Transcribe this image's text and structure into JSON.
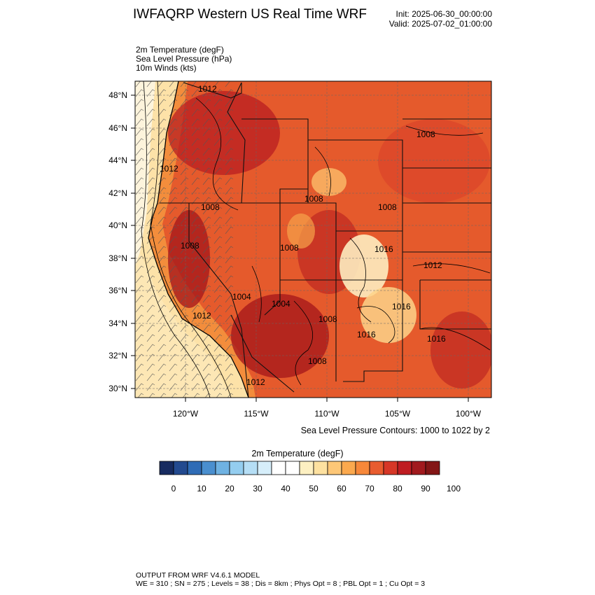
{
  "header": {
    "title": "IWFAQRP Western US Real Time WRF",
    "init": "Init: 2025-06-30_00:00:00",
    "valid": "Valid: 2025-07-02_01:00:00"
  },
  "fields": [
    "2m Temperature   (degF)",
    "Sea Level Pressure   (hPa)",
    "10m Winds   (kts)"
  ],
  "map": {
    "lat_labels": [
      "48°N",
      "46°N",
      "44°N",
      "42°N",
      "40°N",
      "38°N",
      "36°N",
      "34°N",
      "32°N",
      "30°N"
    ],
    "lon_labels": [
      "120°W",
      "115°W",
      "110°W",
      "105°W",
      "100°W"
    ],
    "pressure_labels": [
      "1012",
      "1012",
      "1012",
      "1012",
      "1008",
      "1008",
      "1008",
      "1008",
      "1008",
      "1012",
      "1016",
      "1016",
      "1016",
      "1008",
      "1004",
      "1008",
      "1008",
      "1004",
      "1016"
    ],
    "contour_note": "Sea Level Pressure Contours: 1000 to 1022 by 2"
  },
  "colorbar": {
    "title": "2m Temperature  (degF)",
    "ticks": [
      "0",
      "10",
      "20",
      "30",
      "40",
      "50",
      "60",
      "70",
      "80",
      "90",
      "100"
    ],
    "colors": [
      "#172b60",
      "#234a8f",
      "#2f6cb6",
      "#4a8fcf",
      "#6fb2e2",
      "#94cdef",
      "#b5def5",
      "#d6eefa",
      "#ffffff",
      "#ffffff",
      "#fdf0c2",
      "#fde1a0",
      "#fdc777",
      "#fba94e",
      "#f7883a",
      "#e85c2f",
      "#d63727",
      "#bf1d22",
      "#a11a1e",
      "#831616"
    ]
  },
  "footer": {
    "line1": "OUTPUT FROM WRF V4.6.1 MODEL",
    "line2": "WE = 310 ; SN = 275 ; Levels = 38 ; Dis = 8km ; Phys Opt = 8 ; PBL Opt = 1 ; Cu Opt = 3"
  }
}
